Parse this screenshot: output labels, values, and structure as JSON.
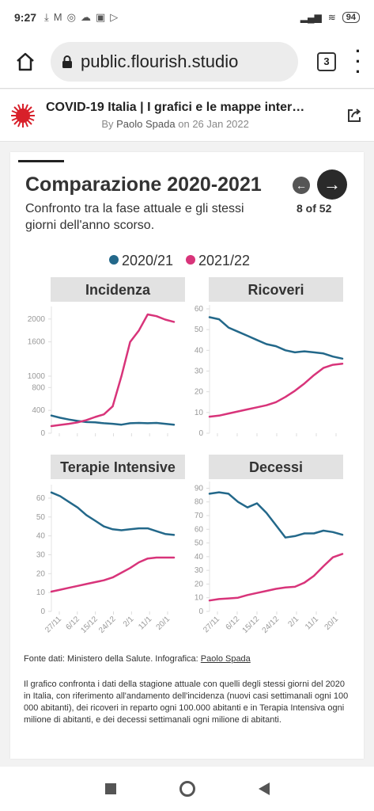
{
  "status": {
    "time": "9:27",
    "battery": "94"
  },
  "browser": {
    "url": "public.flourish.studio",
    "tabs_count": "3"
  },
  "story": {
    "title": "COVID-19 Italia | I grafici e le mappe inter…",
    "byline_prefix": "By",
    "author": "Paolo Spada",
    "byline_on": "on",
    "date": "26 Jan 2022"
  },
  "card": {
    "title": "Comparazione 2020-2021",
    "subtitle": "Confronto tra la fase attuale e gli stessi giorni dell'anno scorso.",
    "counter": "8 of 52",
    "source_prefix": "Fonte dati: Ministero della Salute. Infografica:",
    "source_author": "Paolo Spada",
    "description": "Il grafico confronta i dati della stagione attuale con quelli degli stessi giorni del 2020 in Italia, con riferimento all'andamento dell'incidenza (nuovi casi settimanali ogni 100 000 abitanti), dei ricoveri in reparto ogni 100.000 abitanti e in Terapia Intensiva ogni milione di abitanti, e dei decessi settimanali ogni milione di abitanti."
  },
  "colors": {
    "series_2020": "#23688a",
    "series_2021": "#d8347a",
    "panel_header": "#e2e2e2"
  },
  "chart_data": [
    {
      "type": "line",
      "title": "Incidenza",
      "yticks": [
        0,
        400,
        800,
        1000,
        1600,
        2000
      ],
      "ylim": [
        0,
        2150
      ],
      "xticks": [
        "27/11",
        "6/12",
        "15/12",
        "24/12",
        "2/1",
        "11/1",
        "20/1"
      ],
      "series": [
        {
          "name": "2020/21",
          "values": [
            310,
            270,
            240,
            215,
            195,
            190,
            175,
            165,
            150,
            175,
            180,
            175,
            180,
            165,
            150
          ]
        },
        {
          "name": "2021/22",
          "values": [
            125,
            145,
            165,
            190,
            230,
            285,
            330,
            470,
            1000,
            1600,
            1800,
            2080,
            2050,
            1990,
            1950
          ]
        }
      ]
    },
    {
      "type": "line",
      "title": "Ricoveri",
      "yticks": [
        0,
        10,
        20,
        30,
        40,
        50,
        60
      ],
      "ylim": [
        0,
        60
      ],
      "xticks": [
        "27/11",
        "6/12",
        "15/12",
        "24/12",
        "2/1",
        "11/1",
        "20/1"
      ],
      "series": [
        {
          "name": "2020/21",
          "values": [
            56,
            55,
            51,
            49,
            47,
            45,
            43,
            42,
            40,
            39,
            39.5,
            39,
            38.5,
            37,
            36
          ]
        },
        {
          "name": "2021/22",
          "values": [
            8,
            8.5,
            9.5,
            10.5,
            11.5,
            12.5,
            13.5,
            15,
            17.5,
            20.5,
            24,
            28,
            31.5,
            33,
            33.5
          ]
        }
      ]
    },
    {
      "type": "line",
      "title": "Terapie Intensive",
      "yticks": [
        0,
        10,
        20,
        30,
        40,
        50,
        60
      ],
      "ylim": [
        0,
        65
      ],
      "xticks": [
        "27/11",
        "6/12",
        "15/12",
        "24/12",
        "2/1",
        "11/1",
        "20/1"
      ],
      "series": [
        {
          "name": "2020/21",
          "values": [
            63,
            61,
            58,
            55,
            51,
            48,
            45,
            43.5,
            43,
            43.5,
            44,
            44,
            42.5,
            41,
            40.5
          ]
        },
        {
          "name": "2021/22",
          "values": [
            10.5,
            11.5,
            12.5,
            13.5,
            14.5,
            15.5,
            16.5,
            18,
            20.5,
            23,
            26,
            28,
            28.5,
            28.5,
            28.5
          ]
        }
      ]
    },
    {
      "type": "line",
      "title": "Decessi",
      "yticks": [
        0,
        10,
        20,
        30,
        40,
        50,
        60,
        70,
        80,
        90
      ],
      "ylim": [
        0,
        92
      ],
      "xticks": [
        "27/11",
        "6/12",
        "15/12",
        "24/12",
        "2/1",
        "11/1",
        "20/1"
      ],
      "series": [
        {
          "name": "2020/21",
          "values": [
            86,
            87,
            86,
            80,
            76,
            79,
            72,
            63,
            54,
            55,
            57,
            57,
            59,
            58,
            56
          ]
        },
        {
          "name": "2021/22",
          "values": [
            8,
            9,
            9.5,
            10,
            12,
            13.5,
            15,
            16.5,
            17.5,
            18,
            21,
            26,
            33,
            39.5,
            42
          ]
        }
      ]
    }
  ]
}
